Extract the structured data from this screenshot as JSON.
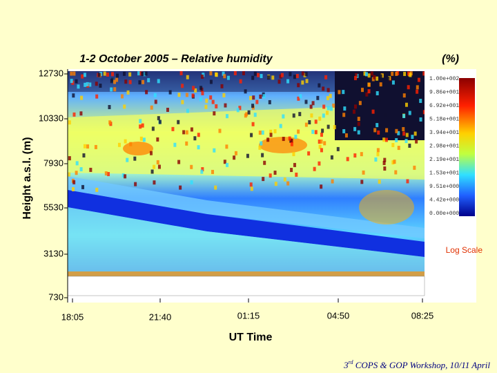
{
  "title": "1-2 October 2005 – Relative humidity",
  "unit": "(%)",
  "y_axis_label": "Height a.s.l. (m)",
  "x_axis_label": "UT Time",
  "y_ticks": [
    "12730",
    "10330",
    "7930",
    "5530",
    "3130",
    "730"
  ],
  "x_ticks": [
    "18:05",
    "21:40",
    "01:15",
    "04:50",
    "08:25"
  ],
  "colorbar_labels": [
    "1.00e+002",
    "9.86e+001",
    "6.92e+001",
    "5.18e+001",
    "3.94e+001",
    "2.98e+001",
    "2.19e+001",
    "1.53e+001",
    "9.51e+000",
    "4.42e+000",
    "0.00e+000"
  ],
  "scale_note": "Log Scale",
  "footer": {
    "number": "3",
    "suffix": "rd",
    "text": " COPS & GOP Workshop, 10/11 April"
  }
}
